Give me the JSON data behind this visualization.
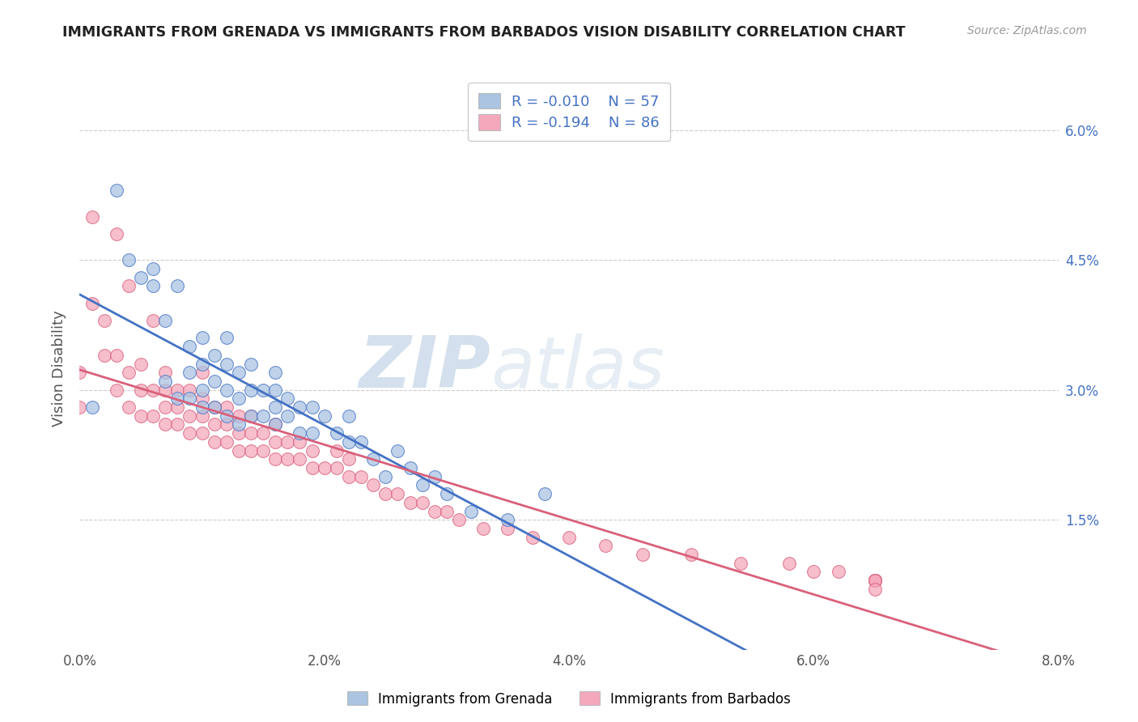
{
  "title": "IMMIGRANTS FROM GRENADA VS IMMIGRANTS FROM BARBADOS VISION DISABILITY CORRELATION CHART",
  "source": "Source: ZipAtlas.com",
  "xlabel": "",
  "ylabel": "Vision Disability",
  "xlim": [
    0.0,
    0.08
  ],
  "ylim": [
    0.0,
    0.065
  ],
  "xtick_labels": [
    "0.0%",
    "2.0%",
    "4.0%",
    "6.0%",
    "8.0%"
  ],
  "xtick_values": [
    0.0,
    0.02,
    0.04,
    0.06,
    0.08
  ],
  "ytick_labels_right": [
    "6.0%",
    "4.5%",
    "3.0%",
    "1.5%",
    ""
  ],
  "ytick_values": [
    0.06,
    0.045,
    0.03,
    0.015,
    0.0
  ],
  "grenada_R": -0.01,
  "grenada_N": 57,
  "barbados_R": -0.194,
  "barbados_N": 86,
  "grenada_color": "#aac4e2",
  "barbados_color": "#f5a8bc",
  "grenada_line_color": "#4472c4",
  "barbados_line_color": "#d9607a",
  "background_color": "#ffffff",
  "grid_color": "#cccccc",
  "legend_labels": [
    "Immigrants from Grenada",
    "Immigrants from Barbados"
  ],
  "grenada_x": [
    0.001,
    0.003,
    0.004,
    0.005,
    0.006,
    0.006,
    0.007,
    0.007,
    0.008,
    0.008,
    0.009,
    0.009,
    0.009,
    0.01,
    0.01,
    0.01,
    0.01,
    0.011,
    0.011,
    0.011,
    0.012,
    0.012,
    0.012,
    0.012,
    0.013,
    0.013,
    0.013,
    0.014,
    0.014,
    0.014,
    0.015,
    0.015,
    0.016,
    0.016,
    0.016,
    0.016,
    0.017,
    0.017,
    0.018,
    0.018,
    0.019,
    0.019,
    0.02,
    0.021,
    0.022,
    0.022,
    0.023,
    0.024,
    0.025,
    0.026,
    0.027,
    0.028,
    0.029,
    0.03,
    0.032,
    0.035,
    0.038
  ],
  "grenada_y": [
    0.028,
    0.053,
    0.045,
    0.043,
    0.042,
    0.044,
    0.031,
    0.038,
    0.029,
    0.042,
    0.029,
    0.032,
    0.035,
    0.028,
    0.03,
    0.033,
    0.036,
    0.028,
    0.031,
    0.034,
    0.027,
    0.03,
    0.033,
    0.036,
    0.026,
    0.029,
    0.032,
    0.027,
    0.03,
    0.033,
    0.027,
    0.03,
    0.026,
    0.028,
    0.03,
    0.032,
    0.027,
    0.029,
    0.025,
    0.028,
    0.025,
    0.028,
    0.027,
    0.025,
    0.024,
    0.027,
    0.024,
    0.022,
    0.02,
    0.023,
    0.021,
    0.019,
    0.02,
    0.018,
    0.016,
    0.015,
    0.018
  ],
  "barbados_x": [
    0.0,
    0.0,
    0.001,
    0.001,
    0.002,
    0.002,
    0.003,
    0.003,
    0.003,
    0.004,
    0.004,
    0.004,
    0.005,
    0.005,
    0.005,
    0.006,
    0.006,
    0.006,
    0.007,
    0.007,
    0.007,
    0.007,
    0.008,
    0.008,
    0.008,
    0.009,
    0.009,
    0.009,
    0.01,
    0.01,
    0.01,
    0.01,
    0.011,
    0.011,
    0.011,
    0.012,
    0.012,
    0.012,
    0.013,
    0.013,
    0.013,
    0.014,
    0.014,
    0.014,
    0.015,
    0.015,
    0.016,
    0.016,
    0.016,
    0.017,
    0.017,
    0.018,
    0.018,
    0.019,
    0.019,
    0.02,
    0.021,
    0.021,
    0.022,
    0.022,
    0.023,
    0.024,
    0.025,
    0.026,
    0.027,
    0.028,
    0.029,
    0.03,
    0.031,
    0.033,
    0.035,
    0.037,
    0.04,
    0.043,
    0.046,
    0.05,
    0.054,
    0.058,
    0.06,
    0.062,
    0.065,
    0.065,
    0.065,
    0.065,
    0.065,
    0.065
  ],
  "barbados_y": [
    0.028,
    0.032,
    0.04,
    0.05,
    0.034,
    0.038,
    0.03,
    0.034,
    0.048,
    0.028,
    0.032,
    0.042,
    0.027,
    0.03,
    0.033,
    0.027,
    0.03,
    0.038,
    0.026,
    0.028,
    0.03,
    0.032,
    0.026,
    0.028,
    0.03,
    0.025,
    0.027,
    0.03,
    0.025,
    0.027,
    0.029,
    0.032,
    0.024,
    0.026,
    0.028,
    0.024,
    0.026,
    0.028,
    0.023,
    0.025,
    0.027,
    0.023,
    0.025,
    0.027,
    0.023,
    0.025,
    0.022,
    0.024,
    0.026,
    0.022,
    0.024,
    0.022,
    0.024,
    0.021,
    0.023,
    0.021,
    0.021,
    0.023,
    0.02,
    0.022,
    0.02,
    0.019,
    0.018,
    0.018,
    0.017,
    0.017,
    0.016,
    0.016,
    0.015,
    0.014,
    0.014,
    0.013,
    0.013,
    0.012,
    0.011,
    0.011,
    0.01,
    0.01,
    0.009,
    0.009,
    0.008,
    0.008,
    0.008,
    0.008,
    0.008,
    0.007
  ]
}
